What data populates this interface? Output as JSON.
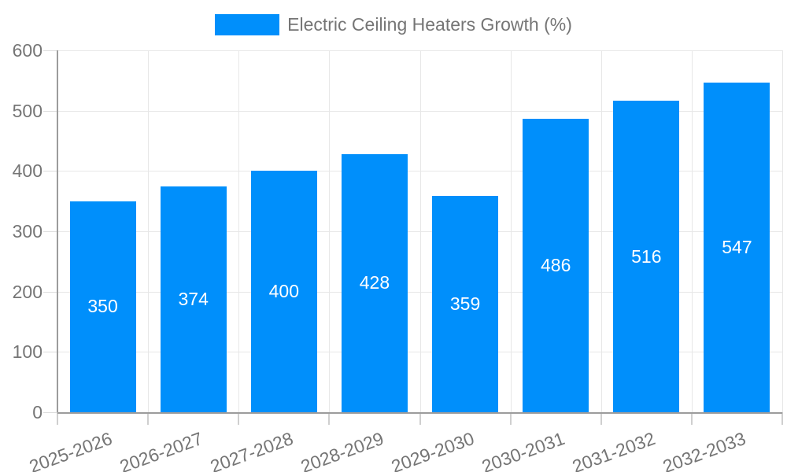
{
  "chart_data": {
    "type": "bar",
    "title": "Electric Ceiling Heaters Growth (%)",
    "legend_position": "top",
    "categories": [
      "2025-2026",
      "2026-2027",
      "2027-2028",
      "2028-2029",
      "2029-2030",
      "2030-2031",
      "2031-2032",
      "2032-2033"
    ],
    "values": [
      350,
      374,
      400,
      428,
      359,
      486,
      516,
      547
    ],
    "xlabel": "",
    "ylabel": "",
    "ylim": [
      0,
      600
    ],
    "yticks": [
      0,
      100,
      200,
      300,
      400,
      500,
      600
    ],
    "grid": true,
    "x_label_rotation_deg": -20,
    "colors": {
      "bar": "#008FFB",
      "bar_label": "#FFFFFF",
      "axis_text": "#757575",
      "grid_line": "#E7E7E7",
      "y_tick_line": "#DDDDDD",
      "x_tick_line": "#CFCFCF",
      "axis_line": "#9C9C9C",
      "background": "#FFFFFF"
    }
  }
}
